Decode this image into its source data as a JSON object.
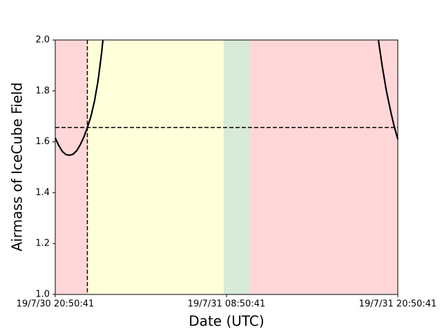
{
  "chart_data": {
    "type": "line",
    "xlabel": "Date (UTC)",
    "ylabel": "Airmass of IceCube Field",
    "xlim": [
      0,
      24
    ],
    "ylim": [
      1.0,
      2.0
    ],
    "xticks": [
      {
        "value": 0,
        "label": "19/7/30 20:50:41"
      },
      {
        "value": 12,
        "label": "19/7/31 08:50:41"
      },
      {
        "value": 24,
        "label": "19/7/31 20:50:41"
      }
    ],
    "yticks": [
      {
        "value": 1.0,
        "label": "1.0"
      },
      1.2,
      1.4,
      1.6,
      1.8,
      {
        "value": 2.0,
        "label": "2.0"
      }
    ],
    "regions": [
      {
        "x": [
          0,
          2.25
        ],
        "color": "#ffd7d8"
      },
      {
        "x": [
          2.25,
          11.8
        ],
        "color": "#ffffda"
      },
      {
        "x": [
          11.8,
          13.6
        ],
        "color": "#d8ead8"
      },
      {
        "x": [
          13.6,
          24
        ],
        "color": "#ffd7d8"
      }
    ],
    "hline": 1.656,
    "vline": 2.25,
    "series": [
      {
        "color": "#000000",
        "x": [
          0,
          0.25,
          0.5,
          0.75,
          1.0,
          1.25,
          1.5,
          1.75,
          2.0,
          2.25,
          2.5,
          2.75,
          3.0,
          3.25,
          3.34,
          13,
          22.64,
          22.9,
          23.2,
          23.5,
          23.75,
          24
        ],
        "values": [
          1.615,
          1.585,
          1.562,
          1.55,
          1.547,
          1.551,
          1.565,
          1.588,
          1.618,
          1.656,
          1.7,
          1.76,
          1.84,
          1.95,
          2.0,
          null,
          2.0,
          1.9,
          1.8,
          1.72,
          1.66,
          1.61
        ]
      }
    ]
  }
}
